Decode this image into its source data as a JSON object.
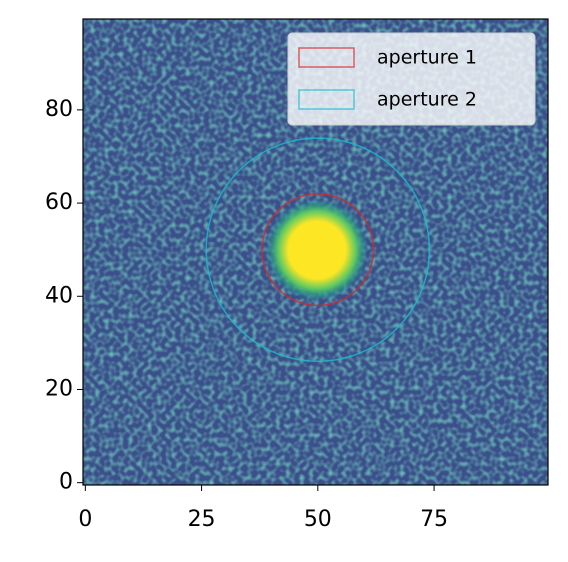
{
  "chart_data": {
    "type": "aperture",
    "xlim": [
      -0.5,
      99.5
    ],
    "ylim": [
      -0.5,
      99.5
    ],
    "xticks": [
      0,
      25,
      50,
      75
    ],
    "yticks": [
      0,
      20,
      40,
      60,
      80
    ],
    "legend": "upper right",
    "series": [
      {
        "name": "aperture 1",
        "color": "#d62728",
        "x": 50,
        "y": 50,
        "r": 12
      },
      {
        "name": "aperture 2",
        "color": "#17becf",
        "x": 50,
        "y": 50,
        "r": 24
      }
    ]
  }
}
